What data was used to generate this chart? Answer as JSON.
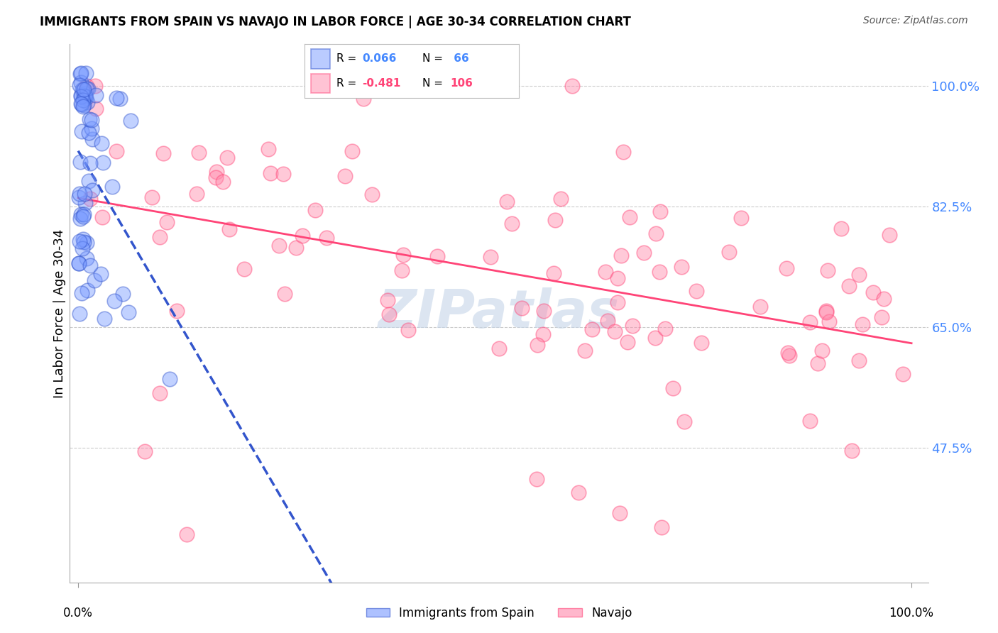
{
  "title": "IMMIGRANTS FROM SPAIN VS NAVAJO IN LABOR FORCE | AGE 30-34 CORRELATION CHART",
  "source": "Source: ZipAtlas.com",
  "ylabel": "In Labor Force | Age 30-34",
  "ytick_labels": [
    "100.0%",
    "82.5%",
    "65.0%",
    "47.5%"
  ],
  "ytick_values": [
    1.0,
    0.825,
    0.65,
    0.475
  ],
  "legend_r_spain": "0.066",
  "legend_n_spain": " 66",
  "legend_r_navajo": "-0.481",
  "legend_n_navajo": "106",
  "legend_label_spain": "Immigrants from Spain",
  "legend_label_navajo": "Navajo",
  "color_spain_fill": "#7799ff",
  "color_spain_edge": "#3355cc",
  "color_navajo_fill": "#ff88aa",
  "color_navajo_edge": "#ff4477",
  "color_spain_line": "#3355cc",
  "color_navajo_line": "#ff4477",
  "color_ytick": "#4488ff",
  "watermark_color": "#c5d5e8",
  "xlim": [
    -0.01,
    1.02
  ],
  "ylim": [
    0.28,
    1.06
  ]
}
